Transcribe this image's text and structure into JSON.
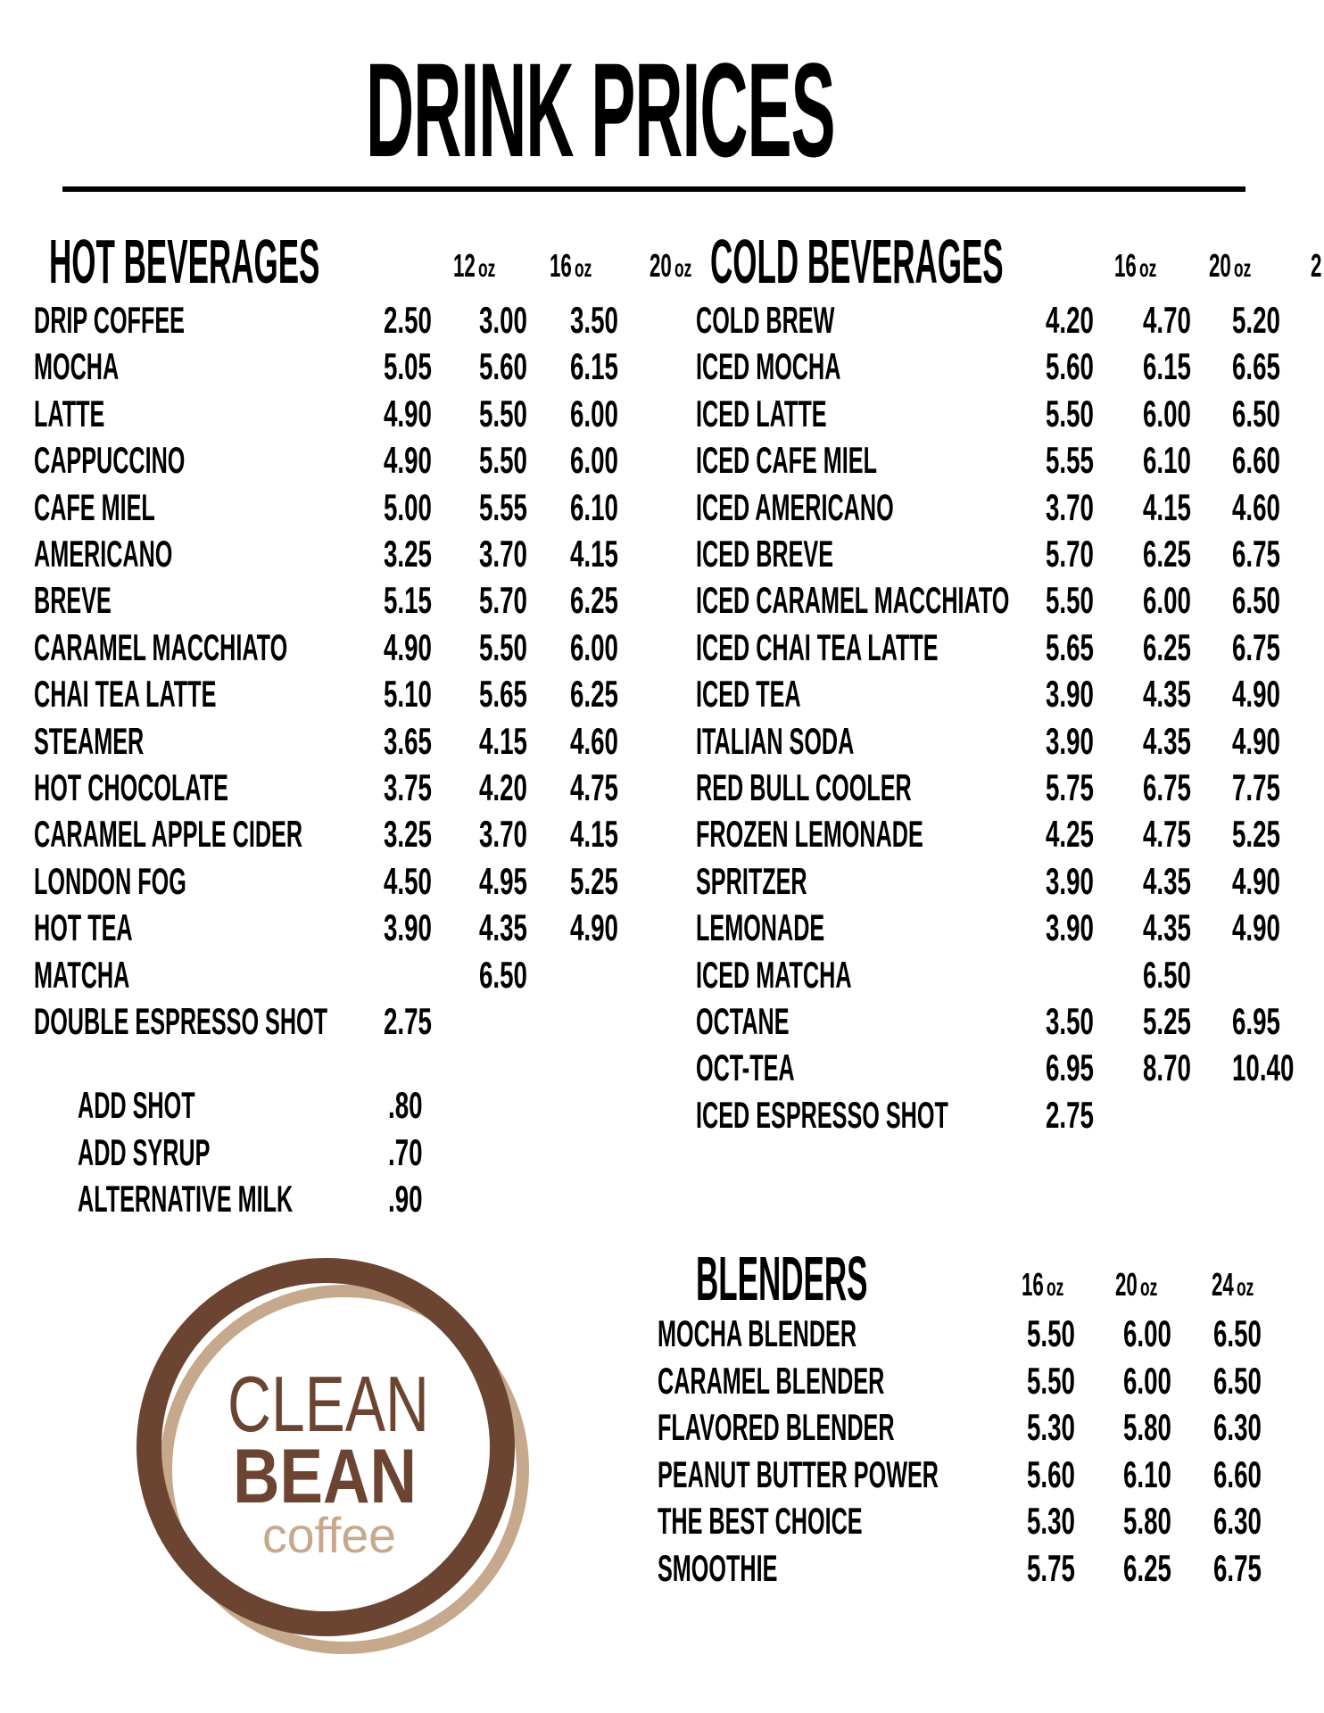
{
  "title": "DRINK PRICES",
  "colors": {
    "logo_dark": "#6b4532",
    "logo_light": "#c6a98c"
  },
  "hot": {
    "heading": "HOT BEVERAGES",
    "sizes": [
      "12",
      "16",
      "20"
    ],
    "unit": "oz",
    "items": [
      {
        "name": "DRIP COFFEE",
        "prices": [
          "2.50",
          "3.00",
          "3.50"
        ]
      },
      {
        "name": "MOCHA",
        "prices": [
          "5.05",
          "5.60",
          "6.15"
        ]
      },
      {
        "name": "LATTE",
        "prices": [
          "4.90",
          "5.50",
          "6.00"
        ]
      },
      {
        "name": "CAPPUCCINO",
        "prices": [
          "4.90",
          "5.50",
          "6.00"
        ]
      },
      {
        "name": "CAFE MIEL",
        "prices": [
          "5.00",
          "5.55",
          "6.10"
        ]
      },
      {
        "name": "AMERICANO",
        "prices": [
          "3.25",
          "3.70",
          "4.15"
        ]
      },
      {
        "name": "BREVE",
        "prices": [
          "5.15",
          "5.70",
          "6.25"
        ]
      },
      {
        "name": "CARAMEL MACCHIATO",
        "prices": [
          "4.90",
          "5.50",
          "6.00"
        ]
      },
      {
        "name": "CHAI TEA LATTE",
        "prices": [
          "5.10",
          "5.65",
          "6.25"
        ]
      },
      {
        "name": "STEAMER",
        "prices": [
          "3.65",
          "4.15",
          "4.60"
        ]
      },
      {
        "name": "HOT CHOCOLATE",
        "prices": [
          "3.75",
          "4.20",
          "4.75"
        ]
      },
      {
        "name": "CARAMEL APPLE CIDER",
        "prices": [
          "3.25",
          "3.70",
          "4.15"
        ]
      },
      {
        "name": "LONDON FOG",
        "prices": [
          "4.50",
          "4.95",
          "5.25"
        ]
      },
      {
        "name": "HOT TEA",
        "prices": [
          "3.90",
          "4.35",
          "4.90"
        ]
      },
      {
        "name": "MATCHA",
        "prices": [
          null,
          "6.50",
          null
        ]
      },
      {
        "name": "DOUBLE ESPRESSO SHOT",
        "prices": [
          "2.75",
          null,
          null
        ]
      }
    ],
    "extras": [
      {
        "name": "ADD SHOT",
        "price": ".80"
      },
      {
        "name": "ADD SYRUP",
        "price": ".70"
      },
      {
        "name": "ALTERNATIVE MILK",
        "price": ".90"
      }
    ]
  },
  "cold": {
    "heading": "COLD BEVERAGES",
    "sizes": [
      "16",
      "20",
      "2"
    ],
    "unit": "oz",
    "items": [
      {
        "name": "COLD BREW",
        "prices": [
          "4.20",
          "4.70",
          "5.20"
        ]
      },
      {
        "name": "ICED MOCHA",
        "prices": [
          "5.60",
          "6.15",
          "6.65"
        ]
      },
      {
        "name": "ICED LATTE",
        "prices": [
          "5.50",
          "6.00",
          "6.50"
        ]
      },
      {
        "name": "ICED CAFE MIEL",
        "prices": [
          "5.55",
          "6.10",
          "6.60"
        ]
      },
      {
        "name": "ICED AMERICANO",
        "prices": [
          "3.70",
          "4.15",
          "4.60"
        ]
      },
      {
        "name": "ICED BREVE",
        "prices": [
          "5.70",
          "6.25",
          "6.75"
        ]
      },
      {
        "name": "ICED CARAMEL MACCHIATO",
        "prices": [
          "5.50",
          "6.00",
          "6.50"
        ]
      },
      {
        "name": "ICED CHAI TEA LATTE",
        "prices": [
          "5.65",
          "6.25",
          "6.75"
        ]
      },
      {
        "name": "ICED TEA",
        "prices": [
          "3.90",
          "4.35",
          "4.90"
        ]
      },
      {
        "name": "ITALIAN SODA",
        "prices": [
          "3.90",
          "4.35",
          "4.90"
        ]
      },
      {
        "name": "RED BULL COOLER",
        "prices": [
          "5.75",
          "6.75",
          "7.75"
        ]
      },
      {
        "name": "FROZEN LEMONADE",
        "prices": [
          "4.25",
          "4.75",
          "5.25"
        ]
      },
      {
        "name": "SPRITZER",
        "prices": [
          "3.90",
          "4.35",
          "4.90"
        ]
      },
      {
        "name": "LEMONADE",
        "prices": [
          "3.90",
          "4.35",
          "4.90"
        ]
      },
      {
        "name": "ICED MATCHA",
        "prices": [
          null,
          "6.50",
          null
        ]
      },
      {
        "name": "OCTANE",
        "prices": [
          "3.50",
          "5.25",
          "6.95"
        ]
      },
      {
        "name": "OCT-TEA",
        "prices": [
          "6.95",
          "8.70",
          "10.40"
        ]
      },
      {
        "name": "ICED ESPRESSO SHOT",
        "prices": [
          "2.75",
          null,
          null
        ]
      }
    ]
  },
  "blenders": {
    "heading": "BLENDERS",
    "sizes": [
      "16",
      "20",
      "24"
    ],
    "unit": "oz",
    "items": [
      {
        "name": "MOCHA BLENDER",
        "prices": [
          "5.50",
          "6.00",
          "6.50"
        ]
      },
      {
        "name": "CARAMEL BLENDER",
        "prices": [
          "5.50",
          "6.00",
          "6.50"
        ]
      },
      {
        "name": "FLAVORED BLENDER",
        "prices": [
          "5.30",
          "5.80",
          "6.30"
        ]
      },
      {
        "name": "PEANUT BUTTER POWER",
        "prices": [
          "5.60",
          "6.10",
          "6.60"
        ]
      },
      {
        "name": "THE BEST CHOICE",
        "prices": [
          "5.30",
          "5.80",
          "6.30"
        ]
      },
      {
        "name": "SMOOTHIE",
        "prices": [
          "5.75",
          "6.25",
          "6.75"
        ]
      }
    ]
  },
  "logo": {
    "line1": "CLEAN",
    "line2": "BEAN",
    "line3": "coffee"
  }
}
